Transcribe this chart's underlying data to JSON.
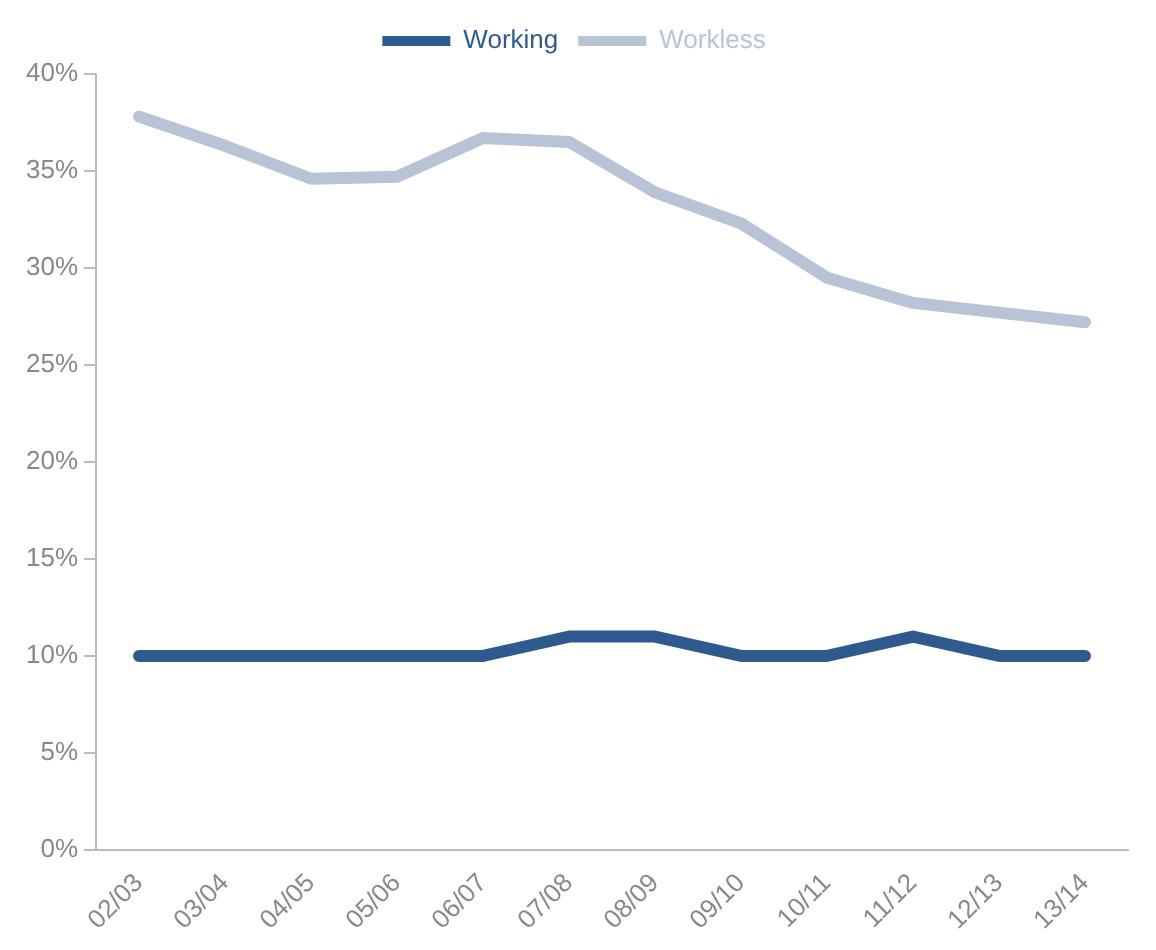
{
  "chart_data": {
    "type": "line",
    "categories": [
      "02/03",
      "03/04",
      "04/05",
      "05/06",
      "06/07",
      "07/08",
      "08/09",
      "09/10",
      "10/11",
      "11/12",
      "12/13",
      "13/14"
    ],
    "series": [
      {
        "name": "Working",
        "color": "#2f5a8e",
        "values": [
          10,
          10,
          10,
          10,
          10,
          11,
          11,
          10,
          10,
          11,
          10,
          10
        ]
      },
      {
        "name": "Workless",
        "color": "#b8c3d6",
        "values": [
          37.8,
          36.3,
          34.6,
          34.7,
          36.7,
          36.5,
          33.9,
          32.3,
          29.5,
          28.2,
          27.7,
          27.2
        ]
      }
    ],
    "ylim": [
      0,
      40
    ],
    "yticks": [
      {
        "value": 0,
        "label": "0%"
      },
      {
        "value": 5,
        "label": "5%"
      },
      {
        "value": 10,
        "label": "10%"
      },
      {
        "value": 15,
        "label": "15%"
      },
      {
        "value": 20,
        "label": "20%"
      },
      {
        "value": 25,
        "label": "25%"
      },
      {
        "value": 30,
        "label": "30%"
      },
      {
        "value": 35,
        "label": "35%"
      },
      {
        "value": 40,
        "label": "40%"
      }
    ],
    "grid": false,
    "legend": "top",
    "marker": "none",
    "line_style": "solid"
  }
}
